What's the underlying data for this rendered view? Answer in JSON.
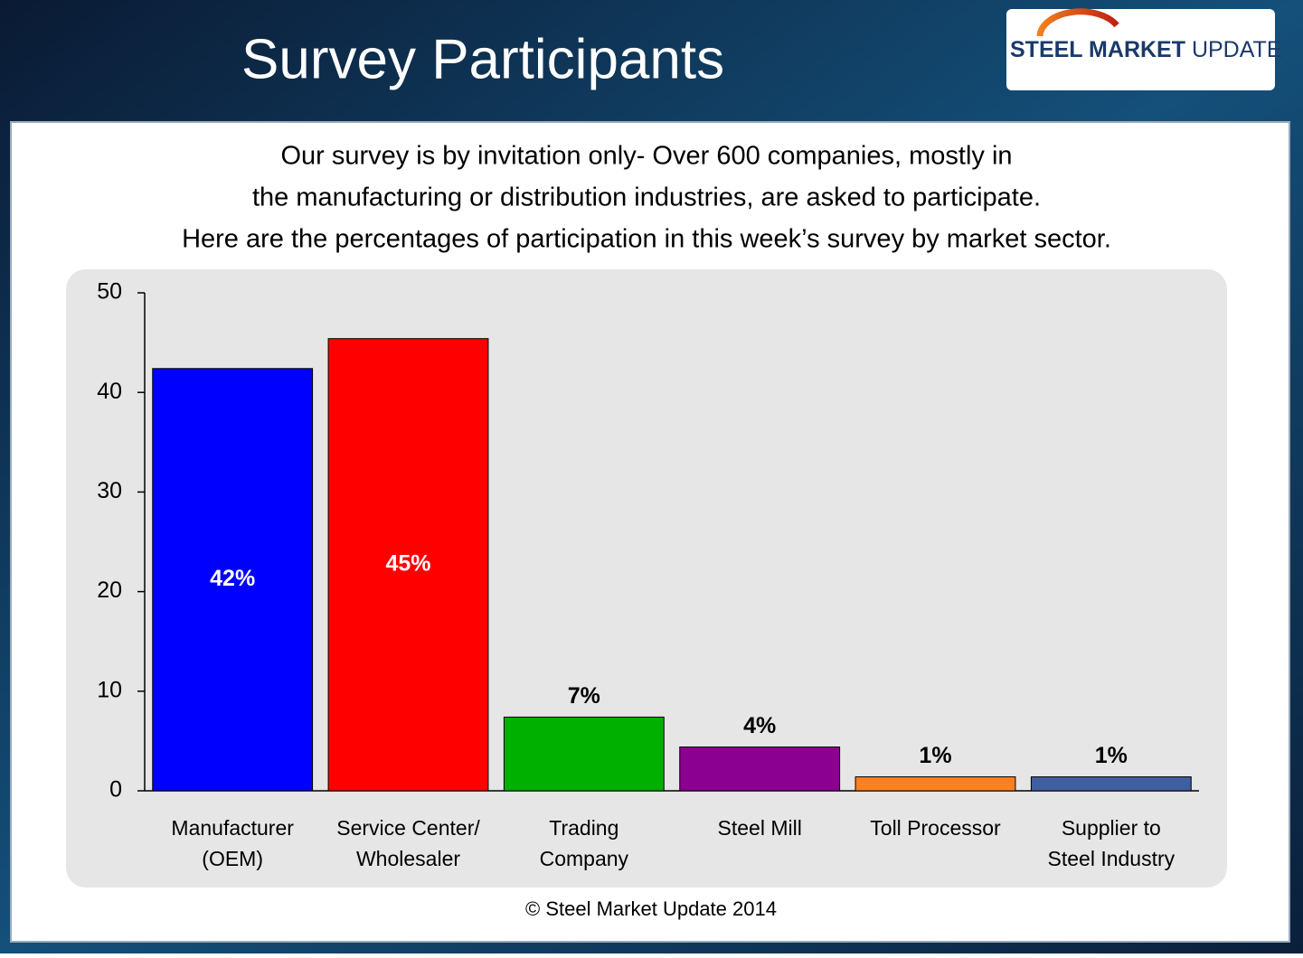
{
  "logo": {
    "strong": "STEEL MARKET",
    "light": "UPDATE"
  },
  "chart_data": {
    "type": "bar",
    "title": "Survey Participants",
    "subtitle": [
      "Our survey is by invitation only- Over 600 companies, mostly in",
      "the manufacturing or distribution industries, are asked to participate.",
      "Here are the percentages of participation in this week’s survey by market sector."
    ],
    "categories": [
      [
        "Manufacturer",
        "(OEM)"
      ],
      [
        "Service Center/",
        "Wholesaler"
      ],
      [
        "Trading",
        "Company"
      ],
      [
        "Steel Mill"
      ],
      [
        "Toll Processor"
      ],
      [
        "Supplier to",
        "Steel Industry"
      ]
    ],
    "values": [
      42.4,
      45.4,
      7.4,
      4.4,
      1.4,
      1.4
    ],
    "value_labels": [
      "42%",
      "45%",
      "7%",
      "4%",
      "1%",
      "1%"
    ],
    "colors": [
      "#0000ff",
      "#ff0000",
      "#00b000",
      "#8b0090",
      "#ff8020",
      "#3f5f9f"
    ],
    "ylim": [
      0,
      50
    ],
    "yticks": [
      0,
      10,
      20,
      30,
      40,
      50
    ],
    "grid": false,
    "footer": "© Steel Market Update 2014"
  }
}
